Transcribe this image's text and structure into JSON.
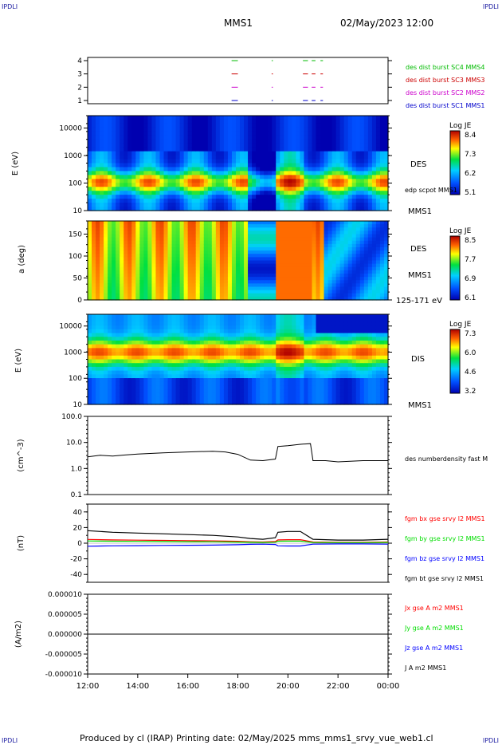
{
  "corners": {
    "tl": "IPDLI",
    "tr": "IPDLI",
    "bl": "IPDLI",
    "br": "IPDLI"
  },
  "header": {
    "title": "MMS1",
    "datetime": "02/May/2023 12:00"
  },
  "footer": {
    "text": "Produced by cl (IRAP)   Printing date: 02/May/2025   mms_mms1_srvy_vue_web1.cl"
  },
  "chart_data": [
    {
      "type": "scatter",
      "panel": "burst-availability",
      "y_ticks": [
        "1",
        "2",
        "3",
        "4"
      ],
      "legend": [
        {
          "label": "des dist burst SC1 MMS1",
          "color": "#0000cc",
          "y": 1
        },
        {
          "label": "des dist burst SC2 MMS2",
          "color": "#cc00cc",
          "y": 2
        },
        {
          "label": "des dist burst SC3 MMS3",
          "color": "#cc0000",
          "y": 3
        },
        {
          "label": "des dist burst SC4 MMS4",
          "color": "#00bb00",
          "y": 4
        }
      ],
      "intervals_hours": [
        [
          17.75,
          18.0
        ],
        [
          19.35,
          19.4
        ],
        [
          20.6,
          20.8
        ],
        [
          20.95,
          21.1
        ],
        [
          21.3,
          21.4
        ]
      ]
    },
    {
      "type": "heatmap",
      "panel": "DES energy spectrogram",
      "ylabel": "E (eV)",
      "yscale": "log",
      "y_ticks": [
        "10",
        "100",
        "1000",
        "10000"
      ],
      "ylim": [
        10,
        30000
      ],
      "colorbar": {
        "title": "Log JE",
        "ticks": [
          "8.4",
          "7.3",
          "6.2",
          "5.1"
        ]
      },
      "labels": [
        "DES",
        "edp scpot MMS1",
        "MMS1"
      ]
    },
    {
      "type": "heatmap",
      "panel": "DES pitch angle",
      "ylabel": "a (deg)",
      "y_ticks": [
        "0",
        "50",
        "100",
        "150"
      ],
      "ylim": [
        0,
        180
      ],
      "colorbar": {
        "title": "Log JE",
        "ticks": [
          "8.5",
          "7.7",
          "6.9",
          "6.1"
        ]
      },
      "labels": [
        "DES",
        "MMS1",
        "125-171 eV"
      ]
    },
    {
      "type": "heatmap",
      "panel": "DIS energy spectrogram",
      "ylabel": "E (eV)",
      "yscale": "log",
      "y_ticks": [
        "10",
        "100",
        "1000",
        "10000"
      ],
      "ylim": [
        10,
        30000
      ],
      "colorbar": {
        "title": "Log JE",
        "ticks": [
          "7.3",
          "6.0",
          "4.6",
          "3.2"
        ]
      },
      "labels": [
        "DIS",
        "MMS1"
      ]
    },
    {
      "type": "line",
      "panel": "density",
      "ylabel": "(cm^-3)",
      "yscale": "log",
      "y_ticks": [
        "0.1",
        "1.0",
        "10.0",
        "100.0"
      ],
      "ylim": [
        0.1,
        100
      ],
      "series": [
        {
          "name": "des numberdensity fast M",
          "color": "#000000"
        }
      ],
      "approx_values": [
        [
          12.0,
          2.8
        ],
        [
          12.5,
          3.2
        ],
        [
          13.0,
          3.0
        ],
        [
          13.5,
          3.3
        ],
        [
          14.0,
          3.6
        ],
        [
          15.0,
          4.0
        ],
        [
          16.0,
          4.3
        ],
        [
          17.0,
          4.6
        ],
        [
          17.5,
          4.3
        ],
        [
          18.0,
          3.5
        ],
        [
          18.5,
          2.1
        ],
        [
          19.0,
          2.0
        ],
        [
          19.5,
          2.3
        ],
        [
          19.6,
          7.0
        ],
        [
          20.0,
          7.5
        ],
        [
          20.5,
          8.5
        ],
        [
          20.9,
          9.0
        ],
        [
          21.0,
          2.0
        ],
        [
          21.5,
          2.0
        ],
        [
          22.0,
          1.8
        ],
        [
          23.0,
          2.0
        ],
        [
          24.0,
          2.0
        ]
      ]
    },
    {
      "type": "line",
      "panel": "magnetic field",
      "ylabel": "(nT)",
      "y_ticks": [
        "-40",
        "-20",
        "0",
        "20",
        "40"
      ],
      "ylim": [
        -50,
        50
      ],
      "series": [
        {
          "name": "fgm bx gse srvy l2 MMS1",
          "color": "#ff0000"
        },
        {
          "name": "fgm by gse srvy l2 MMS1",
          "color": "#00dd00"
        },
        {
          "name": "fgm bz gse srvy l2 MMS1",
          "color": "#0000ff"
        },
        {
          "name": "fgm bt gse srvy l2 MMS1",
          "color": "#000000"
        }
      ],
      "approx_bt": [
        [
          12.0,
          16
        ],
        [
          13.0,
          14
        ],
        [
          14.0,
          13
        ],
        [
          15.0,
          12
        ],
        [
          16.0,
          11
        ],
        [
          17.0,
          10
        ],
        [
          18.0,
          8
        ],
        [
          18.5,
          6
        ],
        [
          19.0,
          5
        ],
        [
          19.5,
          7
        ],
        [
          19.6,
          14
        ],
        [
          20.0,
          15
        ],
        [
          20.5,
          15
        ],
        [
          21.0,
          5
        ],
        [
          22.0,
          4
        ],
        [
          23.0,
          4
        ],
        [
          24.0,
          5
        ]
      ]
    },
    {
      "type": "line",
      "panel": "current density",
      "ylabel": "(A/m2)",
      "y_ticks": [
        "-0.000010",
        "-0.000005",
        "0.000000",
        "0.000005",
        "0.000010"
      ],
      "ylim": [
        -1e-05,
        1e-05
      ],
      "series": [
        {
          "name": "Jx gse A m2 MMS1",
          "color": "#ff0000"
        },
        {
          "name": "Jy gse A m2 MMS1",
          "color": "#00dd00"
        },
        {
          "name": "Jz gse A m2 MMS1",
          "color": "#0000ff"
        },
        {
          "name": "J A m2 MMS1",
          "color": "#000000"
        }
      ]
    }
  ],
  "x_axis": {
    "ticks": [
      "12:00",
      "14:00",
      "16:00",
      "18:00",
      "20:00",
      "22:00",
      "00:00"
    ],
    "range_hours": [
      12,
      24
    ]
  }
}
